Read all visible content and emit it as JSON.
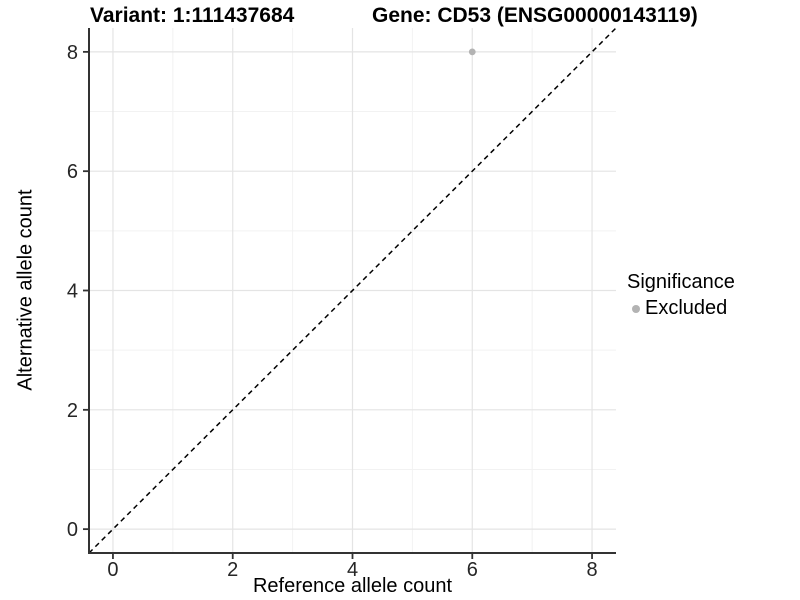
{
  "titles": {
    "variant": "Variant: 1:111437684",
    "gene": "Gene: CD53 (ENSG00000143119)"
  },
  "axes": {
    "x_label": "Reference allele count",
    "y_label": "Alternative allele count"
  },
  "legend": {
    "title": "Significance",
    "items": [
      {
        "label": "Excluded",
        "color": "#b3b3b3"
      }
    ]
  },
  "chart_data": {
    "type": "scatter",
    "title": "Variant: 1:111437684 | Gene: CD53 (ENSG00000143119)",
    "xlabel": "Reference allele count",
    "ylabel": "Alternative allele count",
    "xlim": [
      -0.4,
      8.4
    ],
    "ylim": [
      -0.4,
      8.4
    ],
    "x_ticks": [
      0,
      2,
      4,
      6,
      8
    ],
    "y_ticks": [
      0,
      2,
      4,
      6,
      8
    ],
    "x_minor_ticks": [
      1,
      3,
      5,
      7
    ],
    "y_minor_ticks": [
      1,
      3,
      5,
      7
    ],
    "grid": true,
    "legend_position": "right",
    "series": [
      {
        "name": "Excluded",
        "color": "#b3b3b3",
        "points": [
          {
            "x": 6,
            "y": 8
          }
        ]
      }
    ],
    "reference_line": {
      "type": "identity",
      "slope": 1,
      "intercept": 0,
      "style": "dashed",
      "color": "#000000"
    },
    "style_colors": {
      "major_grid": "#e4e4e4",
      "minor_grid": "#f2f2f2",
      "axis_line": "#333333",
      "tick_label": "#262626"
    }
  }
}
